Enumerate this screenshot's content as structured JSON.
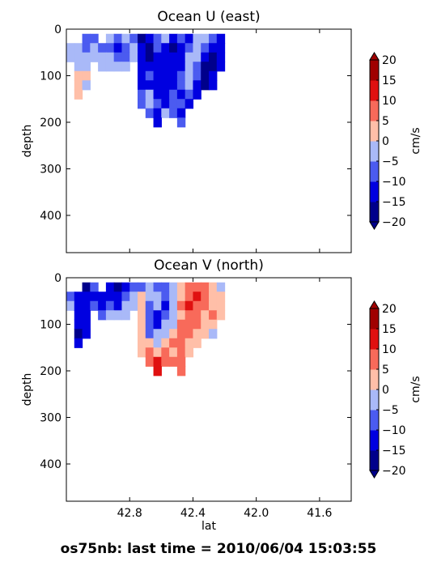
{
  "figure_title": "os75nb: last time = 2010/06/04 15:03:55",
  "colorbar": {
    "label": "cm/s",
    "levels": [
      -20,
      -15,
      -10,
      -5,
      0,
      5,
      10,
      15,
      20
    ],
    "tick_labels": [
      "−20",
      "−15",
      "−10",
      "−5",
      "0",
      "5",
      "10",
      "15",
      "20"
    ],
    "colors": [
      "#00008b",
      "#0000e0",
      "#4b5bf0",
      "#a9b9f8",
      "#ffbfa8",
      "#f86a5a",
      "#e01010",
      "#a00000"
    ],
    "extend": "both"
  },
  "chart_data": [
    {
      "type": "heatmap",
      "title": "Ocean U (east)",
      "xlabel": "",
      "ylabel": "depth",
      "xlim": [
        43.2,
        41.4
      ],
      "ylim": [
        480,
        0
      ],
      "xticks": [
        42.8,
        42.4,
        42.0,
        41.6
      ],
      "xtick_labels": [
        "",
        "",
        "",
        ""
      ],
      "yticks": [
        0,
        100,
        200,
        300,
        400
      ],
      "ytick_labels": [
        "0",
        "100",
        "200",
        "300",
        "400"
      ],
      "lat_bins": [
        43.2,
        43.15,
        43.1,
        43.05,
        43.0,
        42.95,
        42.9,
        42.85,
        42.8,
        42.75,
        42.7,
        42.65,
        42.6,
        42.55,
        42.5,
        42.45,
        42.4,
        42.35,
        42.3,
        42.25,
        42.2
      ],
      "depth_bins": [
        20,
        40,
        60,
        80,
        100,
        120,
        140,
        160,
        180,
        200
      ],
      "values": [
        [
          null,
          null,
          -8,
          -10,
          null,
          -5,
          -8,
          -5,
          -10,
          -18,
          -15,
          -8,
          -3,
          -12,
          -10,
          -12,
          -5,
          -3,
          -8,
          -12
        ],
        [
          -5,
          -3,
          -10,
          -5,
          -8,
          -10,
          -15,
          -8,
          -5,
          -15,
          -18,
          -10,
          -12,
          -18,
          -15,
          -8,
          -3,
          -10,
          -15,
          -12
        ],
        [
          -5,
          -3,
          -5,
          -3,
          -5,
          -5,
          -8,
          -10,
          -5,
          -12,
          -18,
          -15,
          -12,
          -15,
          -12,
          -5,
          -5,
          -15,
          -18,
          -15
        ],
        [
          null,
          -5,
          -5,
          null,
          -5,
          -3,
          -5,
          -3,
          null,
          -12,
          -12,
          -15,
          -15,
          -15,
          -12,
          -5,
          -8,
          -18,
          -18,
          -15
        ],
        [
          null,
          3,
          3,
          null,
          null,
          null,
          null,
          null,
          null,
          -12,
          -10,
          -12,
          -15,
          -15,
          -10,
          -5,
          -10,
          -18,
          -15,
          null
        ],
        [
          null,
          3,
          -3,
          null,
          null,
          null,
          null,
          null,
          null,
          -12,
          -12,
          -15,
          -15,
          -12,
          -10,
          -5,
          -12,
          -18,
          -15,
          null
        ],
        [
          null,
          4,
          null,
          null,
          null,
          null,
          null,
          null,
          null,
          -10,
          -5,
          -12,
          -12,
          -10,
          -12,
          -10,
          -15,
          null,
          null,
          null
        ],
        [
          null,
          null,
          null,
          null,
          null,
          null,
          null,
          null,
          null,
          -8,
          -5,
          -10,
          -12,
          -8,
          -10,
          -12,
          null,
          null,
          null,
          null
        ],
        [
          null,
          null,
          null,
          null,
          null,
          null,
          null,
          null,
          null,
          null,
          -8,
          -12,
          -5,
          -10,
          -12,
          null,
          null,
          null,
          null,
          null
        ],
        [
          null,
          null,
          null,
          null,
          null,
          null,
          null,
          null,
          null,
          null,
          null,
          -12,
          null,
          null,
          -10,
          null,
          null,
          null,
          null,
          null
        ]
      ]
    },
    {
      "type": "heatmap",
      "title": "Ocean V (north)",
      "xlabel": "lat",
      "ylabel": "depth",
      "xlim": [
        43.2,
        41.4
      ],
      "ylim": [
        480,
        0
      ],
      "xticks": [
        42.8,
        42.4,
        42.0,
        41.6
      ],
      "xtick_labels": [
        "42.8",
        "42.4",
        "42.0",
        "41.6"
      ],
      "yticks": [
        0,
        100,
        200,
        300,
        400
      ],
      "ytick_labels": [
        "0",
        "100",
        "200",
        "300",
        "400"
      ],
      "lat_bins": [
        43.2,
        43.15,
        43.1,
        43.05,
        43.0,
        42.95,
        42.9,
        42.85,
        42.8,
        42.75,
        42.7,
        42.65,
        42.6,
        42.55,
        42.5,
        42.45,
        42.4,
        42.35,
        42.3,
        42.25,
        42.2
      ],
      "depth_bins": [
        20,
        40,
        60,
        80,
        100,
        120,
        140,
        160,
        180,
        200
      ],
      "values": [
        [
          null,
          null,
          -18,
          -10,
          null,
          -15,
          -18,
          -15,
          -10,
          -8,
          -5,
          -8,
          -10,
          -3,
          3,
          5,
          8,
          5,
          3,
          -3
        ],
        [
          -8,
          -12,
          -15,
          -12,
          -15,
          -12,
          -15,
          -8,
          -5,
          3,
          -3,
          -3,
          -10,
          -3,
          3,
          8,
          13,
          8,
          3,
          3
        ],
        [
          -3,
          -15,
          -15,
          -10,
          -15,
          -8,
          -12,
          -5,
          -3,
          4,
          -8,
          -5,
          -12,
          -3,
          5,
          10,
          8,
          5,
          3,
          3
        ],
        [
          null,
          -15,
          -12,
          null,
          -8,
          -5,
          -3,
          -3,
          null,
          4,
          -10,
          -12,
          -8,
          -3,
          3,
          5,
          8,
          3,
          5,
          3
        ],
        [
          null,
          -15,
          -15,
          null,
          null,
          null,
          null,
          null,
          null,
          3,
          -10,
          -12,
          -5,
          -3,
          5,
          8,
          5,
          3,
          3,
          null
        ],
        [
          null,
          -18,
          -12,
          null,
          null,
          null,
          null,
          null,
          null,
          3,
          -8,
          -5,
          -5,
          3,
          5,
          8,
          3,
          3,
          -3,
          null
        ],
        [
          null,
          -15,
          null,
          null,
          null,
          null,
          null,
          null,
          null,
          3,
          3,
          -3,
          3,
          5,
          5,
          3,
          3,
          null,
          null,
          null
        ],
        [
          null,
          null,
          null,
          null,
          null,
          null,
          null,
          null,
          null,
          3,
          5,
          3,
          5,
          3,
          5,
          3,
          null,
          null,
          null,
          null
        ],
        [
          null,
          null,
          null,
          null,
          null,
          null,
          null,
          null,
          null,
          null,
          8,
          10,
          5,
          8,
          5,
          null,
          null,
          null,
          null,
          null
        ],
        [
          null,
          null,
          null,
          null,
          null,
          null,
          null,
          null,
          null,
          null,
          null,
          12,
          null,
          null,
          8,
          null,
          null,
          null,
          null,
          null
        ]
      ]
    }
  ]
}
